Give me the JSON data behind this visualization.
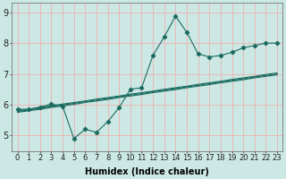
{
  "title": "",
  "xlabel": "Humidex (Indice chaleur)",
  "bg_color": "#cce8e4",
  "grid_color": "#e8b8b8",
  "line_color": "#1a6b60",
  "xmin": -0.5,
  "xmax": 23.5,
  "ymin": 4.5,
  "ymax": 9.3,
  "yticks": [
    5,
    6,
    7,
    8,
    9
  ],
  "xticks": [
    0,
    1,
    2,
    3,
    4,
    5,
    6,
    7,
    8,
    9,
    10,
    11,
    12,
    13,
    14,
    15,
    16,
    17,
    18,
    19,
    20,
    21,
    22,
    23
  ],
  "marked_series": [
    5.85,
    5.85,
    5.92,
    6.02,
    5.95,
    4.9,
    5.2,
    5.1,
    5.45,
    5.9,
    6.5,
    6.55,
    7.6,
    8.2,
    8.88,
    8.35,
    7.65,
    7.55,
    7.6,
    7.7,
    7.85,
    7.92,
    8.0,
    8.0
  ],
  "straight_series": [
    [
      5.78,
      5.83,
      5.88,
      5.94,
      5.99,
      6.04,
      6.1,
      6.15,
      6.2,
      6.26,
      6.31,
      6.36,
      6.42,
      6.47,
      6.52,
      6.58,
      6.63,
      6.68,
      6.74,
      6.79,
      6.84,
      6.9,
      6.95,
      7.0
    ],
    [
      5.8,
      5.85,
      5.91,
      5.96,
      6.02,
      6.07,
      6.12,
      6.18,
      6.23,
      6.28,
      6.34,
      6.39,
      6.44,
      6.5,
      6.55,
      6.6,
      6.66,
      6.71,
      6.76,
      6.82,
      6.87,
      6.92,
      6.98,
      7.03
    ],
    [
      5.75,
      5.8,
      5.85,
      5.91,
      5.96,
      6.01,
      6.07,
      6.12,
      6.17,
      6.23,
      6.28,
      6.33,
      6.39,
      6.44,
      6.49,
      6.55,
      6.6,
      6.65,
      6.71,
      6.76,
      6.81,
      6.87,
      6.92,
      6.97
    ]
  ],
  "marker": "D",
  "marker_size": 2.2,
  "line_width": 0.8,
  "figsize": [
    3.2,
    2.0
  ],
  "dpi": 100,
  "xlabel_fontsize": 7,
  "tick_fontsize": 6
}
